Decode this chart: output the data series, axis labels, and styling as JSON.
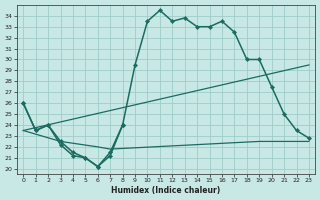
{
  "background_color": "#c8e8e5",
  "grid_color": "#a0ccc8",
  "line_color": "#1a6b60",
  "xlabel": "Humidex (Indice chaleur)",
  "xlim": [
    -0.5,
    23.5
  ],
  "ylim": [
    19.5,
    35.0
  ],
  "x_ticks": [
    0,
    1,
    2,
    3,
    4,
    5,
    6,
    7,
    8,
    9,
    10,
    11,
    12,
    13,
    14,
    15,
    16,
    17,
    18,
    19,
    20,
    21,
    22,
    23
  ],
  "y_ticks": [
    20,
    21,
    22,
    23,
    24,
    25,
    26,
    27,
    28,
    29,
    30,
    31,
    32,
    33,
    34
  ],
  "curve1_x": [
    0,
    1,
    2,
    3,
    4,
    5,
    6,
    7,
    8,
    9,
    10,
    11,
    12,
    13,
    14,
    15,
    16,
    17,
    18,
    19,
    20,
    21,
    22,
    23
  ],
  "curve1_y": [
    26.0,
    23.5,
    24.0,
    22.5,
    21.5,
    21.0,
    20.2,
    21.5,
    24.0,
    29.5,
    33.5,
    34.5,
    33.5,
    33.8,
    33.0,
    33.0,
    33.5,
    32.5,
    30.0,
    30.0,
    27.5,
    25.0,
    23.5,
    22.8
  ],
  "curve2_x": [
    0,
    1,
    2,
    3,
    4,
    5,
    6,
    7,
    8
  ],
  "curve2_y": [
    26.0,
    23.5,
    24.0,
    22.2,
    21.2,
    21.0,
    20.2,
    21.2,
    24.0
  ],
  "curve3_x": [
    0,
    23
  ],
  "curve3_y": [
    23.5,
    29.5
  ],
  "curve4_x": [
    0,
    3,
    6,
    7,
    19,
    20,
    21,
    22,
    23
  ],
  "curve4_y": [
    23.5,
    22.5,
    22.0,
    21.8,
    22.5,
    22.5,
    22.5,
    22.5,
    22.5
  ]
}
